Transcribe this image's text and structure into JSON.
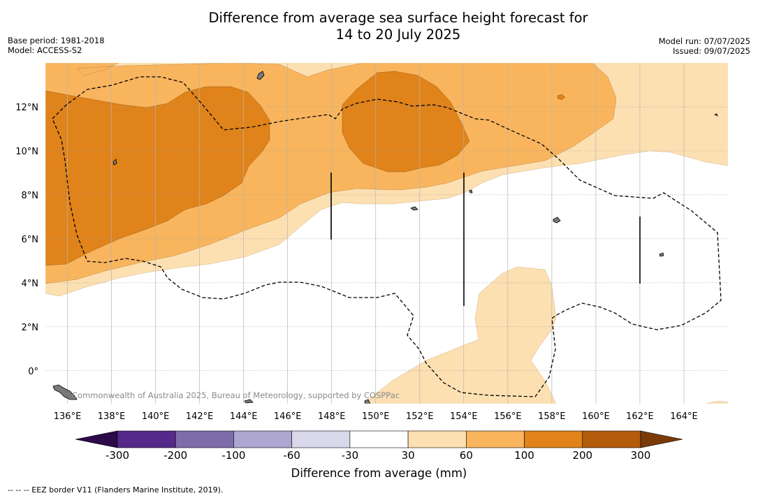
{
  "header": {
    "title_line1": "Difference from average sea surface height forecast for",
    "title_line2": "14 to 20 July 2025",
    "base_period": "Base period: 1981-2018",
    "model": "Model: ACCESS-S2",
    "model_run": "Model run: 07/07/2025",
    "issued": "Issued: 09/07/2025"
  },
  "map": {
    "lon_range": [
      135,
      166
    ],
    "lat_range": [
      -1.5,
      14
    ],
    "lon_ticks": [
      "136°E",
      "138°E",
      "140°E",
      "142°E",
      "144°E",
      "146°E",
      "148°E",
      "150°E",
      "152°E",
      "154°E",
      "156°E",
      "158°E",
      "160°E",
      "162°E",
      "164°E"
    ],
    "lat_ticks": [
      "12°N",
      "10°N",
      "8°N",
      "6°N",
      "4°N",
      "2°N",
      "0°"
    ],
    "copyright": "Commonwealth of Australia 2025, Bureau of Meteorology, supported by COSPPac"
  },
  "colorbar": {
    "title": "Difference from average (mm)",
    "labels": [
      "-300",
      "-200",
      "-100",
      "-60",
      "-30",
      "30",
      "60",
      "100",
      "200",
      "300"
    ],
    "colors": {
      "under": "#2d0a4a",
      "bins": [
        "#55298a",
        "#7d6ca9",
        "#ada6d0",
        "#d8d8ea",
        "#ffffff",
        "#fde0b2",
        "#f9b55e",
        "#e0831a",
        "#b25c0c"
      ],
      "over": "#7a3a07"
    }
  },
  "footer": {
    "legend_text": "-- -- -- EEZ border V11 (Flanders Marine Institute, 2019)."
  }
}
